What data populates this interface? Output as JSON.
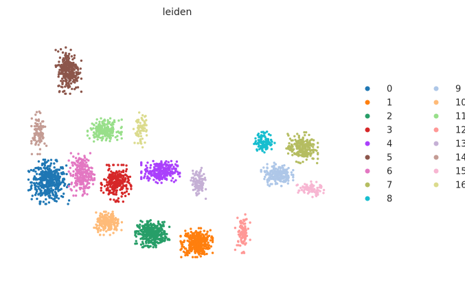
{
  "chart_data": {
    "type": "scatter",
    "title": "leiden",
    "xlabel": "",
    "ylabel": "",
    "grid": false,
    "axes_visible": false,
    "legend_placement": "right",
    "legend_columns": 2,
    "categories": [
      "0",
      "1",
      "2",
      "3",
      "4",
      "5",
      "6",
      "7",
      "8",
      "9",
      "10",
      "11",
      "12",
      "13",
      "14",
      "15",
      "16"
    ],
    "colors": [
      "#1f77b4",
      "#ff7f0e",
      "#279e68",
      "#d62728",
      "#aa40fc",
      "#8c564b",
      "#e377c2",
      "#b5bd61",
      "#17becf",
      "#aec7e8",
      "#ffbb78",
      "#98df8a",
      "#ff9896",
      "#c5b0d5",
      "#c49c94",
      "#f7b6d2",
      "#dbdb8d"
    ],
    "series": [
      {
        "name": "0",
        "color": "#1f77b4",
        "centroid": [
          -7.6,
          0.5
        ],
        "spread": [
          0.95,
          1.15
        ],
        "n": 420
      },
      {
        "name": "1",
        "color": "#ff7f0e",
        "centroid": [
          1.4,
          -3.6
        ],
        "spread": [
          0.75,
          0.75
        ],
        "n": 380
      },
      {
        "name": "2",
        "color": "#279e68",
        "centroid": [
          -1.3,
          -3.0
        ],
        "spread": [
          0.8,
          0.7
        ],
        "n": 360
      },
      {
        "name": "3",
        "color": "#d62728",
        "centroid": [
          -3.5,
          0.4
        ],
        "spread": [
          0.7,
          0.95
        ],
        "n": 240
      },
      {
        "name": "4",
        "color": "#aa40fc",
        "centroid": [
          -0.8,
          1.2
        ],
        "spread": [
          0.9,
          0.6
        ],
        "n": 260
      },
      {
        "name": "5",
        "color": "#8c564b",
        "centroid": [
          -6.4,
          8.0
        ],
        "spread": [
          0.6,
          1.2
        ],
        "n": 260
      },
      {
        "name": "6",
        "color": "#e377c2",
        "centroid": [
          -5.6,
          1.0
        ],
        "spread": [
          0.6,
          1.1
        ],
        "n": 240
      },
      {
        "name": "7",
        "color": "#b5bd61",
        "centroid": [
          7.8,
          2.8
        ],
        "spread": [
          0.75,
          0.8
        ],
        "n": 220
      },
      {
        "name": "8",
        "color": "#17becf",
        "centroid": [
          5.5,
          3.2
        ],
        "spread": [
          0.5,
          0.55
        ],
        "n": 120
      },
      {
        "name": "9",
        "color": "#aec7e8",
        "centroid": [
          6.3,
          1.0
        ],
        "spread": [
          0.75,
          0.6
        ],
        "n": 200
      },
      {
        "name": "10",
        "color": "#ffbb78",
        "centroid": [
          -4.0,
          -2.3
        ],
        "spread": [
          0.65,
          0.6
        ],
        "n": 200
      },
      {
        "name": "11",
        "color": "#98df8a",
        "centroid": [
          -4.2,
          4.0
        ],
        "spread": [
          0.8,
          0.6
        ],
        "n": 200
      },
      {
        "name": "12",
        "color": "#ff9896",
        "centroid": [
          4.2,
          -3.0
        ],
        "spread": [
          0.35,
          1.0
        ],
        "n": 90
      },
      {
        "name": "13",
        "color": "#c5b0d5",
        "centroid": [
          1.5,
          0.4
        ],
        "spread": [
          0.35,
          0.8
        ],
        "n": 110
      },
      {
        "name": "14",
        "color": "#c49c94",
        "centroid": [
          -8.2,
          3.8
        ],
        "spread": [
          0.35,
          1.1
        ],
        "n": 100
      },
      {
        "name": "15",
        "color": "#f7b6d2",
        "centroid": [
          8.3,
          0.0
        ],
        "spread": [
          0.65,
          0.4
        ],
        "n": 80
      },
      {
        "name": "16",
        "color": "#dbdb8d",
        "centroid": [
          -2.0,
          4.0
        ],
        "spread": [
          0.35,
          0.9
        ],
        "n": 70
      }
    ],
    "xlim": [
      -9.4,
      10.0
    ],
    "ylim": [
      -5.4,
      11.0
    ]
  }
}
